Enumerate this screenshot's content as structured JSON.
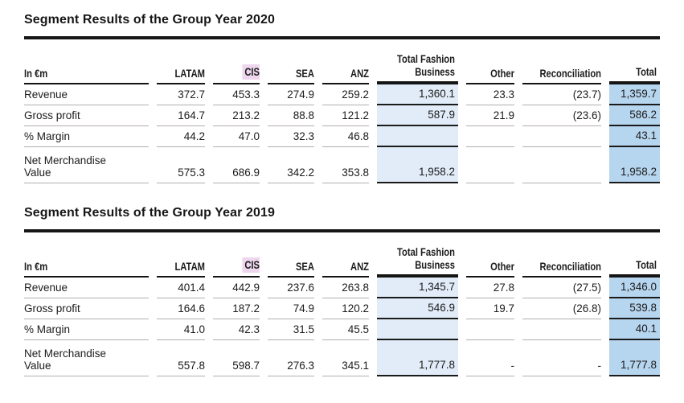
{
  "colors": {
    "ink": "#1c1c1c",
    "line_gray": "#b3adad",
    "shade_light": "#e1ecf8",
    "shade_medium": "#b6d5ef",
    "cis_highlight": "#eed6ee",
    "page_bg": "#ffffff"
  },
  "tables": [
    {
      "title": "Segment Results of the Group Year 2020",
      "unit_label": "In €m",
      "columns": [
        "LATAM",
        "CIS",
        "SEA",
        "ANZ",
        "Total Fashion Business",
        "Other",
        "Reconciliation",
        "Total"
      ],
      "rows": [
        {
          "label": "Revenue",
          "values": [
            "372.7",
            "453.3",
            "274.9",
            "259.2",
            "1,360.1",
            "23.3",
            "(23.7)",
            "1,359.7"
          ]
        },
        {
          "label": "Gross profit",
          "values": [
            "164.7",
            "213.2",
            "88.8",
            "121.2",
            "587.9",
            "21.9",
            "(23.6)",
            "586.2"
          ]
        },
        {
          "label": "% Margin",
          "values": [
            "44.2",
            "47.0",
            "32.3",
            "46.8",
            "",
            "",
            "",
            "43.1"
          ]
        },
        {
          "label": "Net Merchandise Value",
          "values": [
            "575.3",
            "686.9",
            "342.2",
            "353.8",
            "1,958.2",
            "",
            "",
            "1,958.2"
          ]
        }
      ]
    },
    {
      "title": "Segment Results of the Group Year 2019",
      "unit_label": "In €m",
      "columns": [
        "LATAM",
        "CIS",
        "SEA",
        "ANZ",
        "Total Fashion Business",
        "Other",
        "Reconciliation",
        "Total"
      ],
      "rows": [
        {
          "label": "Revenue",
          "values": [
            "401.4",
            "442.9",
            "237.6",
            "263.8",
            "1,345.7",
            "27.8",
            "(27.5)",
            "1,346.0"
          ]
        },
        {
          "label": "Gross profit",
          "values": [
            "164.6",
            "187.2",
            "74.9",
            "120.2",
            "546.9",
            "19.7",
            "(26.8)",
            "539.8"
          ]
        },
        {
          "label": "% Margin",
          "values": [
            "41.0",
            "42.3",
            "31.5",
            "45.5",
            "",
            "",
            "",
            "40.1"
          ]
        },
        {
          "label": "Net Merchandise Value",
          "values": [
            "557.8",
            "598.7",
            "276.3",
            "345.1",
            "1,777.8",
            "-",
            "-",
            "1,777.8"
          ]
        }
      ]
    }
  ]
}
